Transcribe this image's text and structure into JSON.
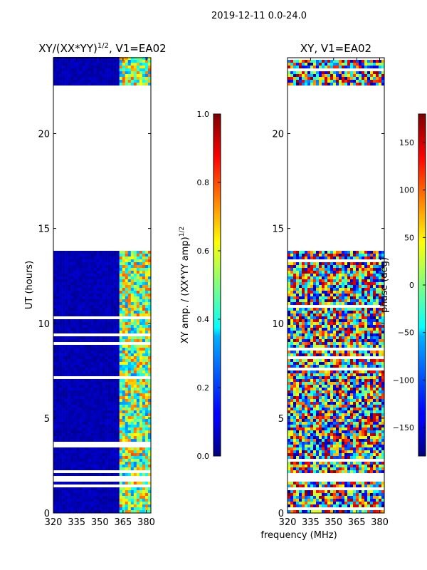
{
  "figure": {
    "suptitle": "2019-12-11 0.0-24.0",
    "shared_xlabel": "frequency (MHz)"
  },
  "chart_data": [
    {
      "type": "heatmap",
      "title": "XY/(XX*YY)",
      "title_sup": "1/2",
      "title_suffix": ", V1=EA02",
      "xlabel": "",
      "ylabel": "UT (hours)",
      "xlim": [
        320,
        383
      ],
      "ylim": [
        0,
        24
      ],
      "xticks": [
        320,
        335,
        350,
        365,
        380
      ],
      "yticks": [
        0,
        5,
        10,
        15,
        20
      ],
      "data_gap_hours": [
        13.8,
        22.5
      ],
      "colorbar": {
        "label": "XY amp. / (XX*YY amp)",
        "label_sup": "1/2",
        "range": [
          0.0,
          1.0
        ],
        "ticks": [
          "0.0",
          "0.2",
          "0.4",
          "0.6",
          "0.8",
          "1.0"
        ],
        "colormap": "jet"
      }
    },
    {
      "type": "heatmap",
      "title": "XY, V1=EA02",
      "xlabel": "frequency (MHz)",
      "ylabel": "",
      "xlim": [
        320,
        383
      ],
      "ylim": [
        0,
        24
      ],
      "xticks": [
        320,
        335,
        350,
        365,
        380
      ],
      "yticks": [
        0,
        5,
        10,
        15,
        20
      ],
      "data_gap_hours": [
        13.8,
        22.5
      ],
      "colorbar": {
        "label": "phase (deg)",
        "range": [
          -180,
          180
        ],
        "ticks": [
          "−150",
          "−100",
          "−50",
          "0",
          "50",
          "100",
          "150"
        ],
        "tick_values": [
          -150,
          -100,
          -50,
          0,
          50,
          100,
          150
        ],
        "colormap": "jet"
      }
    }
  ],
  "colors": {
    "jet_stops": [
      "#00007f",
      "#0000ff",
      "#007fff",
      "#00ffff",
      "#7fff7f",
      "#ffff00",
      "#ff7f00",
      "#ff0000",
      "#7f0000"
    ]
  }
}
